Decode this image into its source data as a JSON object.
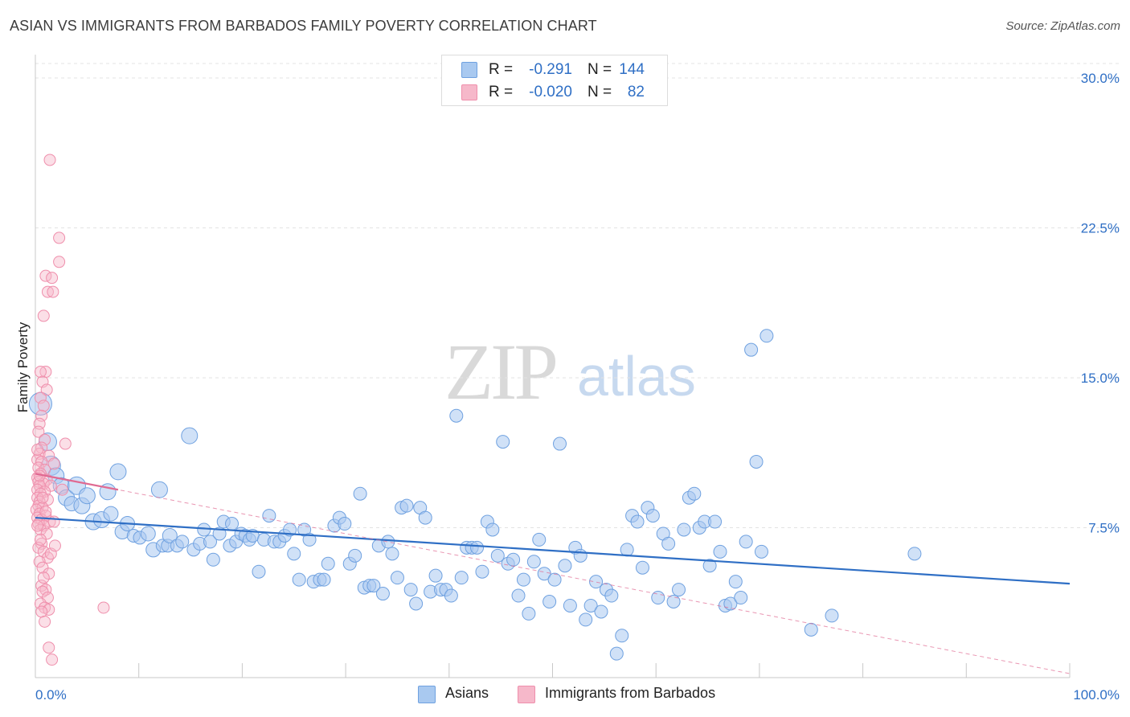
{
  "header": {
    "title": "ASIAN VS IMMIGRANTS FROM BARBADOS FAMILY POVERTY CORRELATION CHART",
    "source": "Source: ZipAtlas.com"
  },
  "watermark": {
    "zip": "ZIP",
    "atlas": "atlas"
  },
  "legend": {
    "rows": [
      {
        "r_label": "R =",
        "r_value": "-0.291",
        "n_label": "N =",
        "n_value": "144",
        "color": "#a9c9f0"
      },
      {
        "r_label": "R =",
        "r_value": "-0.020",
        "n_label": "N =",
        "n_value": "82",
        "color": "#f6b8ca"
      }
    ]
  },
  "bottom_legend": {
    "items": [
      {
        "label": "Asians",
        "color": "#a9c9f0"
      },
      {
        "label": "Immigrants from Barbados",
        "color": "#f6b8ca"
      }
    ]
  },
  "chart_data": {
    "type": "scatter",
    "title": "ASIAN VS IMMIGRANTS FROM BARBADOS FAMILY POVERTY CORRELATION CHART",
    "xlabel": "",
    "ylabel": "Family Poverty",
    "xlim": [
      0,
      100
    ],
    "ylim": [
      0,
      30
    ],
    "x_tick_labels": [
      "0.0%",
      "100.0%"
    ],
    "y_ticks": [
      7.5,
      15.0,
      22.5,
      30.0
    ],
    "y_tick_labels": [
      "7.5%",
      "15.0%",
      "22.5%",
      "30.0%"
    ],
    "grid": true,
    "series": [
      {
        "name": "Asians",
        "color": "#6fa1e0",
        "fill": "#a9c9f0",
        "trend": {
          "x0": 0,
          "y0": 8.0,
          "x1": 100,
          "y1": 4.7,
          "color": "#2f6fc5",
          "style": "solid"
        },
        "points": [
          [
            0.5,
            13.7,
            14
          ],
          [
            1.2,
            11.8,
            11
          ],
          [
            1.5,
            10.6,
            12
          ],
          [
            2.0,
            10.1,
            10
          ],
          [
            2.5,
            9.6,
            10
          ],
          [
            3.0,
            9.0,
            10
          ],
          [
            3.5,
            8.7,
            9
          ],
          [
            4.0,
            9.6,
            11
          ],
          [
            4.5,
            8.6,
            10
          ],
          [
            5.0,
            9.1,
            10
          ],
          [
            5.6,
            7.8,
            10
          ],
          [
            6.4,
            7.9,
            10
          ],
          [
            7.0,
            9.3,
            10
          ],
          [
            7.3,
            8.2,
            9
          ],
          [
            8.0,
            10.3,
            10
          ],
          [
            8.4,
            7.3,
            9
          ],
          [
            8.9,
            7.7,
            9
          ],
          [
            9.5,
            7.1,
            8
          ],
          [
            10.1,
            7.0,
            8
          ],
          [
            10.9,
            7.2,
            9
          ],
          [
            11.4,
            6.4,
            9
          ],
          [
            12.0,
            9.4,
            10
          ],
          [
            12.3,
            6.6,
            8
          ],
          [
            12.8,
            6.6,
            8
          ],
          [
            13.0,
            7.1,
            9
          ],
          [
            13.7,
            6.6,
            8
          ],
          [
            14.2,
            6.8,
            8
          ],
          [
            14.9,
            12.1,
            10
          ],
          [
            15.3,
            6.4,
            8
          ],
          [
            15.9,
            6.7,
            8
          ],
          [
            16.3,
            7.4,
            8
          ],
          [
            16.9,
            6.8,
            8
          ],
          [
            17.2,
            5.9,
            8
          ],
          [
            17.8,
            7.2,
            8
          ],
          [
            18.2,
            7.8,
            8
          ],
          [
            18.8,
            6.6,
            8
          ],
          [
            19.0,
            7.7,
            8
          ],
          [
            19.4,
            6.8,
            8
          ],
          [
            19.9,
            7.2,
            8
          ],
          [
            20.3,
            7.1,
            8
          ],
          [
            20.7,
            6.9,
            8
          ],
          [
            21.0,
            7.1,
            8
          ],
          [
            21.6,
            5.3,
            8
          ],
          [
            22.1,
            6.9,
            8
          ],
          [
            22.6,
            8.1,
            8
          ],
          [
            23.1,
            6.8,
            8
          ],
          [
            23.6,
            6.8,
            8
          ],
          [
            24.1,
            7.1,
            8
          ],
          [
            24.6,
            7.4,
            8
          ],
          [
            25.0,
            6.2,
            8
          ],
          [
            25.5,
            4.9,
            8
          ],
          [
            26.0,
            7.4,
            8
          ],
          [
            26.5,
            6.9,
            8
          ],
          [
            26.9,
            4.8,
            8
          ],
          [
            27.5,
            4.9,
            8
          ],
          [
            27.9,
            4.9,
            8
          ],
          [
            28.3,
            5.7,
            8
          ],
          [
            28.9,
            7.6,
            8
          ],
          [
            29.4,
            8.0,
            8
          ],
          [
            29.9,
            7.7,
            8
          ],
          [
            30.4,
            5.7,
            8
          ],
          [
            30.9,
            6.1,
            8
          ],
          [
            31.4,
            9.2,
            8
          ],
          [
            31.8,
            4.5,
            8
          ],
          [
            32.3,
            4.6,
            8
          ],
          [
            32.7,
            4.6,
            8
          ],
          [
            33.2,
            6.6,
            8
          ],
          [
            33.6,
            4.2,
            8
          ],
          [
            34.1,
            6.8,
            8
          ],
          [
            34.5,
            6.2,
            8
          ],
          [
            35.0,
            5.0,
            8
          ],
          [
            35.4,
            8.5,
            8
          ],
          [
            35.9,
            8.6,
            8
          ],
          [
            36.3,
            4.4,
            8
          ],
          [
            36.8,
            3.7,
            8
          ],
          [
            37.2,
            8.5,
            8
          ],
          [
            37.7,
            8.0,
            8
          ],
          [
            38.2,
            4.3,
            8
          ],
          [
            38.7,
            5.1,
            8
          ],
          [
            39.2,
            4.4,
            8
          ],
          [
            39.7,
            4.4,
            8
          ],
          [
            40.2,
            4.1,
            8
          ],
          [
            40.7,
            13.1,
            8
          ],
          [
            41.2,
            5.0,
            8
          ],
          [
            41.7,
            6.5,
            8
          ],
          [
            42.2,
            6.5,
            8
          ],
          [
            42.7,
            6.5,
            8
          ],
          [
            43.2,
            5.3,
            8
          ],
          [
            43.7,
            7.8,
            8
          ],
          [
            44.2,
            7.4,
            8
          ],
          [
            44.7,
            6.1,
            8
          ],
          [
            45.2,
            11.8,
            8
          ],
          [
            45.7,
            5.7,
            8
          ],
          [
            46.2,
            5.9,
            8
          ],
          [
            46.7,
            4.1,
            8
          ],
          [
            47.2,
            4.9,
            8
          ],
          [
            47.7,
            3.2,
            8
          ],
          [
            48.2,
            5.8,
            8
          ],
          [
            48.7,
            6.9,
            8
          ],
          [
            49.2,
            5.2,
            8
          ],
          [
            49.7,
            3.8,
            8
          ],
          [
            50.2,
            4.9,
            8
          ],
          [
            50.7,
            11.7,
            8
          ],
          [
            51.2,
            5.6,
            8
          ],
          [
            51.7,
            3.6,
            8
          ],
          [
            52.2,
            6.5,
            8
          ],
          [
            52.7,
            6.1,
            8
          ],
          [
            53.2,
            2.9,
            8
          ],
          [
            53.7,
            3.6,
            8
          ],
          [
            54.2,
            4.8,
            8
          ],
          [
            54.7,
            3.3,
            8
          ],
          [
            55.2,
            4.4,
            8
          ],
          [
            55.7,
            4.1,
            8
          ],
          [
            56.2,
            1.2,
            8
          ],
          [
            56.7,
            2.1,
            8
          ],
          [
            57.2,
            6.4,
            8
          ],
          [
            57.7,
            8.1,
            8
          ],
          [
            58.2,
            7.8,
            8
          ],
          [
            58.7,
            5.5,
            8
          ],
          [
            59.2,
            8.5,
            8
          ],
          [
            59.7,
            8.1,
            8
          ],
          [
            60.2,
            4.0,
            8
          ],
          [
            60.7,
            7.2,
            8
          ],
          [
            61.2,
            6.7,
            8
          ],
          [
            61.7,
            3.8,
            8
          ],
          [
            62.2,
            4.4,
            8
          ],
          [
            62.7,
            7.4,
            8
          ],
          [
            63.2,
            9.0,
            8
          ],
          [
            63.7,
            9.2,
            8
          ],
          [
            64.2,
            7.5,
            8
          ],
          [
            64.7,
            7.8,
            8
          ],
          [
            65.2,
            5.6,
            8
          ],
          [
            65.7,
            7.8,
            8
          ],
          [
            66.2,
            6.3,
            8
          ],
          [
            66.7,
            3.6,
            8
          ],
          [
            67.2,
            3.7,
            8
          ],
          [
            67.7,
            4.8,
            8
          ],
          [
            68.2,
            4.0,
            8
          ],
          [
            68.7,
            6.8,
            8
          ],
          [
            69.2,
            16.4,
            8
          ],
          [
            69.7,
            10.8,
            8
          ],
          [
            70.2,
            6.3,
            8
          ],
          [
            70.7,
            17.1,
            8
          ],
          [
            75.0,
            2.4,
            8
          ],
          [
            77.0,
            3.1,
            8
          ],
          [
            85.0,
            6.2,
            8
          ]
        ]
      },
      {
        "name": "Immigrants from Barbados",
        "color": "#ef8fac",
        "fill": "#f6b8ca",
        "trend": {
          "x0": 0,
          "y0": 10.2,
          "x1": 100,
          "y1": 0.2,
          "color": "#e06a92",
          "style": "dashed"
        },
        "points": [
          [
            1.4,
            25.9
          ],
          [
            2.3,
            22.0
          ],
          [
            2.3,
            20.8
          ],
          [
            1.0,
            20.1
          ],
          [
            1.6,
            20.0
          ],
          [
            1.2,
            19.3
          ],
          [
            1.7,
            19.3
          ],
          [
            0.8,
            18.1
          ],
          [
            1.0,
            15.3
          ],
          [
            0.5,
            15.3
          ],
          [
            0.7,
            14.8
          ],
          [
            1.1,
            14.4
          ],
          [
            0.5,
            14.0
          ],
          [
            0.8,
            13.6
          ],
          [
            0.6,
            13.1
          ],
          [
            0.4,
            12.7
          ],
          [
            0.3,
            12.3
          ],
          [
            0.9,
            11.9
          ],
          [
            2.9,
            11.7
          ],
          [
            0.6,
            11.5
          ],
          [
            0.4,
            11.2
          ],
          [
            1.3,
            11.1
          ],
          [
            0.2,
            10.9
          ],
          [
            0.6,
            10.8
          ],
          [
            1.8,
            10.7
          ],
          [
            0.3,
            10.5
          ],
          [
            0.9,
            10.4
          ],
          [
            0.5,
            10.2
          ],
          [
            0.2,
            10.0
          ],
          [
            1.1,
            9.9
          ],
          [
            0.3,
            9.8
          ],
          [
            0.8,
            9.7
          ],
          [
            0.4,
            9.6
          ],
          [
            1.5,
            9.6
          ],
          [
            0.2,
            9.4
          ],
          [
            0.9,
            9.3
          ],
          [
            0.5,
            9.2
          ],
          [
            0.2,
            9.0
          ],
          [
            1.2,
            8.9
          ],
          [
            0.4,
            8.8
          ],
          [
            0.3,
            8.6
          ],
          [
            0.7,
            8.5
          ],
          [
            0.1,
            8.4
          ],
          [
            0.4,
            8.2
          ],
          [
            1.0,
            8.1
          ],
          [
            0.2,
            8.0
          ],
          [
            0.6,
            7.9
          ],
          [
            1.4,
            7.8
          ],
          [
            0.3,
            7.7
          ],
          [
            0.8,
            7.6
          ],
          [
            1.8,
            7.8
          ],
          [
            0.5,
            7.4
          ],
          [
            1.1,
            7.2
          ],
          [
            0.6,
            6.7
          ],
          [
            0.3,
            6.5
          ],
          [
            0.8,
            6.3
          ],
          [
            1.2,
            6.0
          ],
          [
            0.4,
            5.8
          ],
          [
            0.7,
            5.5
          ],
          [
            1.3,
            5.2
          ],
          [
            0.6,
            4.6
          ],
          [
            1.0,
            4.4
          ],
          [
            0.7,
            4.3
          ],
          [
            1.2,
            4.0
          ],
          [
            0.5,
            3.7
          ],
          [
            0.9,
            3.5
          ],
          [
            1.3,
            3.4
          ],
          [
            0.6,
            3.3
          ],
          [
            0.9,
            2.8
          ],
          [
            1.3,
            1.5
          ],
          [
            1.6,
            0.9
          ],
          [
            6.6,
            3.5
          ],
          [
            0.2,
            11.4
          ],
          [
            0.4,
            10.1
          ],
          [
            0.7,
            9.0
          ],
          [
            1.0,
            8.3
          ],
          [
            0.2,
            7.6
          ],
          [
            0.5,
            6.9
          ],
          [
            1.5,
            6.2
          ],
          [
            0.8,
            5.0
          ],
          [
            1.9,
            6.6
          ],
          [
            2.6,
            9.4
          ]
        ]
      }
    ]
  }
}
